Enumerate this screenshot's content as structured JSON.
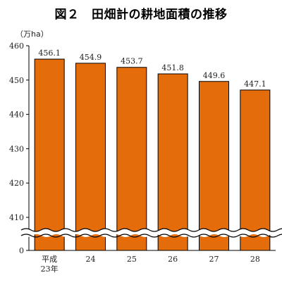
{
  "chart_data": {
    "type": "bar",
    "title": "図２　田畑計の耕地面積の推移",
    "ylabel": "（万ha）",
    "xlabel": "",
    "categories": [
      [
        "平成",
        "23年"
      ],
      [
        "24"
      ],
      [
        "25"
      ],
      [
        "26"
      ],
      [
        "27"
      ],
      [
        "28"
      ]
    ],
    "values": [
      456.1,
      454.9,
      453.7,
      451.8,
      449.6,
      447.1
    ],
    "value_labels": [
      "456.1",
      "454.9",
      "453.7",
      "451.8",
      "449.6",
      "447.1"
    ],
    "ylim": [
      400,
      460
    ],
    "yticks": [
      410,
      420,
      430,
      440,
      450,
      460
    ],
    "axis_break": true,
    "axis_break_bottom_label": "0",
    "bar_color": "#E46C0A",
    "bar_edge_color": "#000000",
    "grid": false,
    "legend": "none"
  }
}
